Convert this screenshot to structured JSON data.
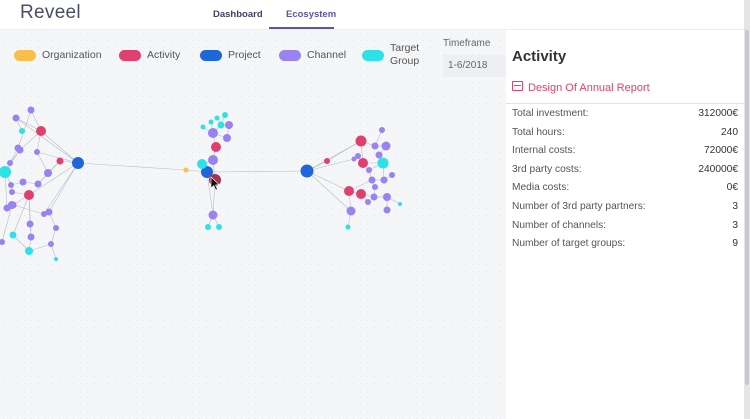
{
  "app": {
    "logo": "Reveel"
  },
  "nav": {
    "tabs": [
      {
        "label": "Dashboard"
      },
      {
        "label": "Ecosystem"
      }
    ]
  },
  "legend": {
    "items": [
      {
        "label": "Organization",
        "color": "#f7c04a"
      },
      {
        "label": "Activity",
        "color": "#e0406e"
      },
      {
        "label": "Project",
        "color": "#1f67d8"
      },
      {
        "label": "Channel",
        "color": "#9a82f0"
      },
      {
        "label": "Target Group",
        "color": "#2de2e4"
      }
    ]
  },
  "timeframe": {
    "label": "Timeframe",
    "value": "1-6/2018"
  },
  "panel": {
    "title": "Activity",
    "link": "Design Of Annual Report",
    "metrics": [
      {
        "label": "Total investment:",
        "value": "312000€"
      },
      {
        "label": "Total hours:",
        "value": "240"
      },
      {
        "label": "Internal costs:",
        "value": "72000€"
      },
      {
        "label": "3rd party costs:",
        "value": "240000€"
      },
      {
        "label": "Media costs:",
        "value": "0€"
      },
      {
        "label": "Number of 3rd party partners:",
        "value": "3"
      },
      {
        "label": "Number of channels:",
        "value": "3"
      },
      {
        "label": "Number of target groups:",
        "value": "9"
      }
    ]
  },
  "graph": {
    "node_colors": {
      "organization": "#f7c04a",
      "activity": "#e0406e",
      "project": "#1f67d8",
      "channel": "#9a82f0",
      "target_group": "#2de2e4",
      "selected": "#a8334f"
    }
  }
}
